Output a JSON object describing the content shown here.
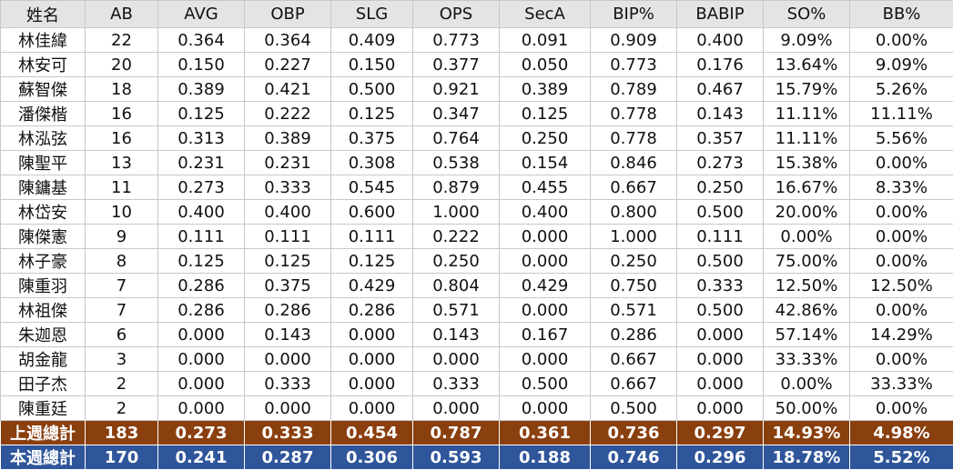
{
  "table": {
    "header": [
      "姓名",
      "AB",
      "AVG",
      "OBP",
      "SLG",
      "OPS",
      "SecA",
      "BIP%",
      "BABIP",
      "SO%",
      "BB%"
    ],
    "rows": [
      [
        "林佳緯",
        "22",
        "0.364",
        "0.364",
        "0.409",
        "0.773",
        "0.091",
        "0.909",
        "0.400",
        "9.09%",
        "0.00%"
      ],
      [
        "林安可",
        "20",
        "0.150",
        "0.227",
        "0.150",
        "0.377",
        "0.050",
        "0.773",
        "0.176",
        "13.64%",
        "9.09%"
      ],
      [
        "蘇智傑",
        "18",
        "0.389",
        "0.421",
        "0.500",
        "0.921",
        "0.389",
        "0.789",
        "0.467",
        "15.79%",
        "5.26%"
      ],
      [
        "潘傑楷",
        "16",
        "0.125",
        "0.222",
        "0.125",
        "0.347",
        "0.125",
        "0.778",
        "0.143",
        "11.11%",
        "11.11%"
      ],
      [
        "林泓弦",
        "16",
        "0.313",
        "0.389",
        "0.375",
        "0.764",
        "0.250",
        "0.778",
        "0.357",
        "11.11%",
        "5.56%"
      ],
      [
        "陳聖平",
        "13",
        "0.231",
        "0.231",
        "0.308",
        "0.538",
        "0.154",
        "0.846",
        "0.273",
        "15.38%",
        "0.00%"
      ],
      [
        "陳鏞基",
        "11",
        "0.273",
        "0.333",
        "0.545",
        "0.879",
        "0.455",
        "0.667",
        "0.250",
        "16.67%",
        "8.33%"
      ],
      [
        "林岱安",
        "10",
        "0.400",
        "0.400",
        "0.600",
        "1.000",
        "0.400",
        "0.800",
        "0.500",
        "20.00%",
        "0.00%"
      ],
      [
        "陳傑憲",
        "9",
        "0.111",
        "0.111",
        "0.111",
        "0.222",
        "0.000",
        "1.000",
        "0.111",
        "0.00%",
        "0.00%"
      ],
      [
        "林子豪",
        "8",
        "0.125",
        "0.125",
        "0.125",
        "0.250",
        "0.000",
        "0.250",
        "0.500",
        "75.00%",
        "0.00%"
      ],
      [
        "陳重羽",
        "7",
        "0.286",
        "0.375",
        "0.429",
        "0.804",
        "0.429",
        "0.750",
        "0.333",
        "12.50%",
        "12.50%"
      ],
      [
        "林祖傑",
        "7",
        "0.286",
        "0.286",
        "0.286",
        "0.571",
        "0.000",
        "0.571",
        "0.500",
        "42.86%",
        "0.00%"
      ],
      [
        "朱迦恩",
        "6",
        "0.000",
        "0.143",
        "0.000",
        "0.143",
        "0.167",
        "0.286",
        "0.000",
        "57.14%",
        "14.29%"
      ],
      [
        "胡金龍",
        "3",
        "0.000",
        "0.000",
        "0.000",
        "0.000",
        "0.000",
        "0.667",
        "0.000",
        "33.33%",
        "0.00%"
      ],
      [
        "田子杰",
        "2",
        "0.000",
        "0.333",
        "0.000",
        "0.333",
        "0.500",
        "0.667",
        "0.000",
        "0.00%",
        "33.33%"
      ],
      [
        "陳重廷",
        "2",
        "0.000",
        "0.000",
        "0.000",
        "0.000",
        "0.000",
        "0.500",
        "0.000",
        "50.00%",
        "0.00%"
      ]
    ],
    "totals": [
      [
        "上週總計",
        "183",
        "0.273",
        "0.333",
        "0.454",
        "0.787",
        "0.361",
        "0.736",
        "0.297",
        "14.93%",
        "4.98%"
      ],
      [
        "本週總計",
        "170",
        "0.241",
        "0.287",
        "0.306",
        "0.593",
        "0.188",
        "0.746",
        "0.296",
        "18.78%",
        "5.52%"
      ]
    ]
  }
}
